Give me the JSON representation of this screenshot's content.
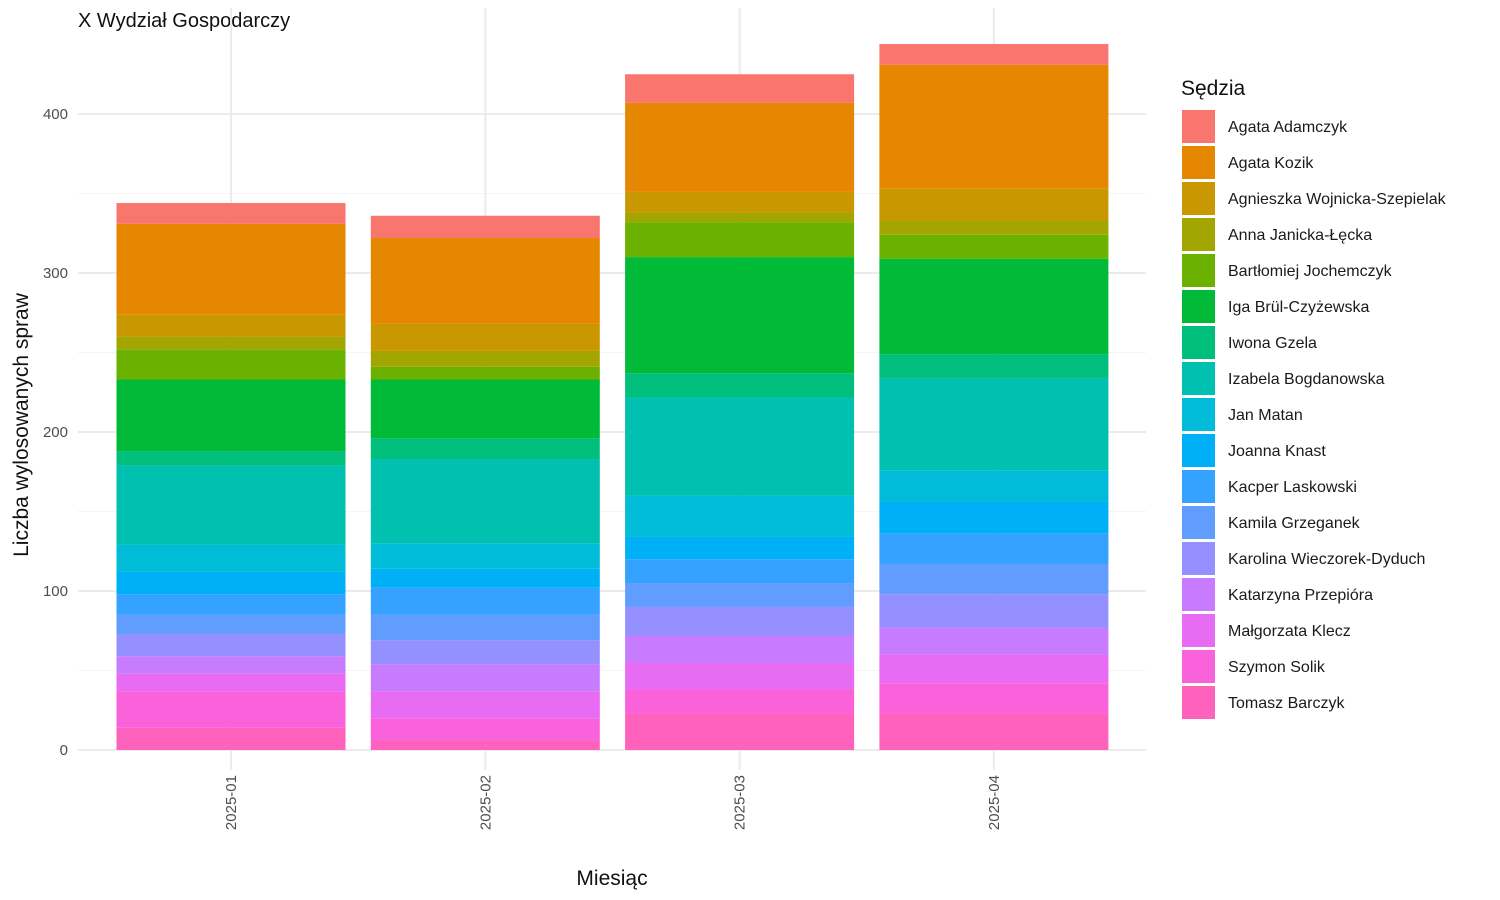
{
  "chart_data": {
    "type": "bar",
    "stacked": true,
    "title": "X Wydział Gospodarczy",
    "xlabel": "Miesiąc",
    "ylabel": "Liczba wylosowanych spraw",
    "legend_title": "Sędzia",
    "legend_position": "right",
    "ylim": [
      0,
      460
    ],
    "yticks": [
      0,
      100,
      200,
      300,
      400
    ],
    "grid": true,
    "categories": [
      "2025-01",
      "2025-02",
      "2025-03",
      "2025-04"
    ],
    "series": [
      {
        "name": "Agata Adamczyk",
        "color": "#F8766D",
        "values": [
          13,
          14,
          18,
          13
        ]
      },
      {
        "name": "Agata Kozik",
        "color": "#E58700",
        "values": [
          57,
          54,
          56,
          78
        ]
      },
      {
        "name": "Agnieszka Wojnicka-Szepielak",
        "color": "#C99800",
        "values": [
          14,
          17,
          13,
          20
        ]
      },
      {
        "name": "Anna Janicka-Łęcka",
        "color": "#A3A500",
        "values": [
          8,
          10,
          6,
          9
        ]
      },
      {
        "name": "Bartłomiej Jochemczyk",
        "color": "#6BB100",
        "values": [
          19,
          8,
          22,
          15
        ]
      },
      {
        "name": "Iga Brül-Czyżewska",
        "color": "#00BA38",
        "values": [
          45,
          37,
          73,
          60
        ]
      },
      {
        "name": "Iwona Gzela",
        "color": "#00BF7D",
        "values": [
          9,
          13,
          15,
          15
        ]
      },
      {
        "name": "Izabela Bogdanowska",
        "color": "#00C0AF",
        "values": [
          50,
          53,
          62,
          58
        ]
      },
      {
        "name": "Jan Matan",
        "color": "#00BCD8",
        "values": [
          17,
          16,
          26,
          20
        ]
      },
      {
        "name": "Joanna Knast",
        "color": "#00B0F6",
        "values": [
          14,
          12,
          14,
          20
        ]
      },
      {
        "name": "Kacper Laskowski",
        "color": "#35A2FF",
        "values": [
          13,
          17,
          15,
          19
        ]
      },
      {
        "name": "Kamila Grzeganek",
        "color": "#619CFF",
        "values": [
          12,
          16,
          15,
          19
        ]
      },
      {
        "name": "Karolina Wieczorek-Dyduch",
        "color": "#9590FF",
        "values": [
          14,
          15,
          18,
          21
        ]
      },
      {
        "name": "Katarzyna Przepióra",
        "color": "#C77CFF",
        "values": [
          11,
          17,
          17,
          17
        ]
      },
      {
        "name": "Małgorzata Klecz",
        "color": "#E76BF3",
        "values": [
          11,
          17,
          17,
          18
        ]
      },
      {
        "name": "Szymon Solik",
        "color": "#FA62DB",
        "values": [
          23,
          14,
          15,
          19
        ]
      },
      {
        "name": "Tomasz Barczyk",
        "color": "#FF62BC",
        "values": [
          14,
          6,
          23,
          23
        ]
      }
    ]
  }
}
